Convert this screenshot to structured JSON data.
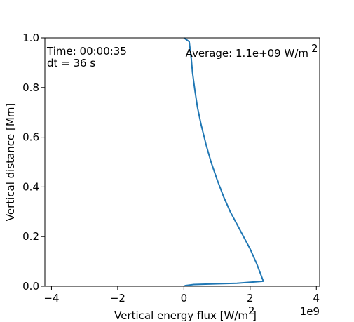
{
  "chart_data": {
    "type": "line",
    "xlabel": "Vertical energy flux [W/m",
    "xlabel_sup": "2",
    "xlabel_tail": "]",
    "ylabel": "Vertical distance [Mm]",
    "x_offset_label": "1e9",
    "xlim": [
      -4.2,
      4.1
    ],
    "ylim": [
      0.0,
      1.0
    ],
    "x_ticks": [
      -4,
      -2,
      0,
      2,
      4
    ],
    "x_tick_labels": [
      "−4",
      "−2",
      "0",
      "2",
      "4"
    ],
    "y_ticks": [
      0.0,
      0.2,
      0.4,
      0.6,
      0.8,
      1.0
    ],
    "y_tick_labels": [
      "0.0",
      "0.2",
      "0.4",
      "0.6",
      "0.8",
      "1.0"
    ],
    "annotations": {
      "time": "Time: 00:00:35",
      "dt": "dt = 36 s",
      "average": "Average: 1.1e+09 W/m",
      "average_sup": "2"
    },
    "series": [
      {
        "color": "#1f77b4",
        "x": [
          0.0,
          0.05,
          0.3,
          1.0,
          1.6,
          2.4,
          2.2,
          2.0,
          1.8,
          1.6,
          1.4,
          1.2,
          1.0,
          0.82,
          0.67,
          0.52,
          0.41,
          0.33,
          0.26,
          0.22,
          0.16,
          0.0
        ],
        "y": [
          0.0,
          0.003,
          0.007,
          0.01,
          0.012,
          0.02,
          0.09,
          0.15,
          0.2,
          0.25,
          0.3,
          0.36,
          0.43,
          0.5,
          0.57,
          0.65,
          0.72,
          0.79,
          0.86,
          0.92,
          0.985,
          1.0
        ]
      }
    ]
  }
}
